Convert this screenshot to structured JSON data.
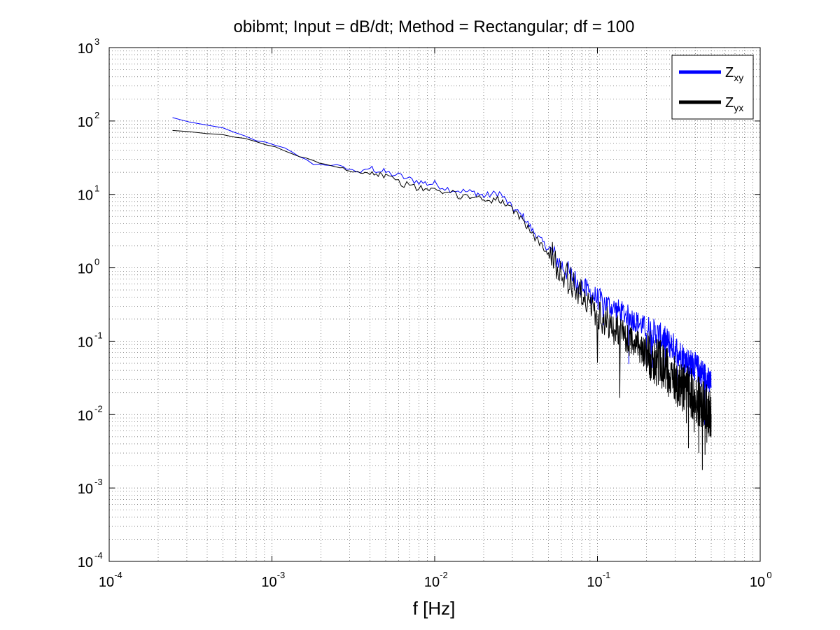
{
  "chart_data": {
    "type": "line",
    "title": "obibmt; Input = dB/dt; Method = Rectangular; df = 100",
    "xlabel": "f [Hz]",
    "ylabel": "",
    "xscale": "log",
    "yscale": "log",
    "xlim": [
      0.0001,
      1
    ],
    "ylim": [
      0.0001,
      1000
    ],
    "grid": true,
    "legend_position": "top-right",
    "x_ticks": [
      {
        "base": "10",
        "exp": "-4"
      },
      {
        "base": "10",
        "exp": "-3"
      },
      {
        "base": "10",
        "exp": "-2"
      },
      {
        "base": "10",
        "exp": "-1"
      },
      {
        "base": "10",
        "exp": "0"
      }
    ],
    "y_ticks": [
      {
        "base": "10",
        "exp": "-4"
      },
      {
        "base": "10",
        "exp": "-3"
      },
      {
        "base": "10",
        "exp": "-2"
      },
      {
        "base": "10",
        "exp": "-1"
      },
      {
        "base": "10",
        "exp": "0"
      },
      {
        "base": "10",
        "exp": "1"
      },
      {
        "base": "10",
        "exp": "2"
      },
      {
        "base": "10",
        "exp": "3"
      }
    ],
    "series": [
      {
        "name": "Zxy",
        "legend_main": "Z",
        "legend_sub": "xy",
        "color": "#0000ff",
        "x": [
          0.000245,
          0.0005,
          0.0008,
          0.0012,
          0.0018,
          0.0025,
          0.003,
          0.0035,
          0.004,
          0.0045,
          0.005,
          0.006,
          0.007,
          0.008,
          0.009,
          0.01,
          0.012,
          0.015,
          0.018,
          0.02,
          0.025,
          0.03,
          0.035,
          0.04,
          0.05,
          0.06,
          0.07,
          0.08,
          0.09,
          0.1,
          0.12,
          0.15,
          0.2,
          0.25,
          0.3,
          0.35,
          0.4,
          0.45,
          0.5
        ],
        "y": [
          110,
          78,
          55,
          42,
          26,
          25,
          22,
          20,
          23,
          21,
          20,
          18,
          16,
          15,
          14,
          14,
          12,
          11,
          10.5,
          9.5,
          10.5,
          6.5,
          5,
          3.2,
          1.8,
          1.1,
          0.75,
          0.55,
          0.45,
          0.38,
          0.3,
          0.23,
          0.15,
          0.11,
          0.08,
          0.055,
          0.045,
          0.035,
          0.025
        ]
      },
      {
        "name": "Zyx",
        "legend_main": "Z",
        "legend_sub": "yx",
        "color": "#000000",
        "x": [
          0.000245,
          0.0005,
          0.0008,
          0.0012,
          0.0018,
          0.0025,
          0.003,
          0.0035,
          0.004,
          0.0045,
          0.005,
          0.006,
          0.007,
          0.008,
          0.009,
          0.01,
          0.012,
          0.015,
          0.018,
          0.02,
          0.025,
          0.03,
          0.035,
          0.04,
          0.05,
          0.06,
          0.07,
          0.08,
          0.09,
          0.1,
          0.12,
          0.15,
          0.2,
          0.25,
          0.3,
          0.35,
          0.4,
          0.45,
          0.5
        ],
        "y": [
          72,
          66,
          52,
          40,
          28,
          24,
          21,
          20,
          20,
          19,
          18,
          15,
          13,
          12,
          12,
          11,
          10.5,
          9.5,
          9.5,
          8.5,
          8.5,
          6,
          4.5,
          2.8,
          1.6,
          0.95,
          0.6,
          0.42,
          0.32,
          0.24,
          0.16,
          0.11,
          0.07,
          0.045,
          0.03,
          0.022,
          0.017,
          0.013,
          0.01
        ]
      }
    ]
  }
}
